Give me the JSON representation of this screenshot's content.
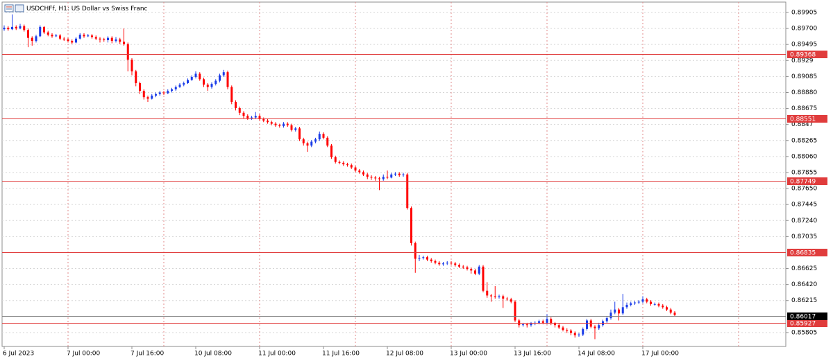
{
  "chart_data": {
    "type": "candlestick",
    "title": "USDCHFf, H1:  US Dollar vs Swiss Franc",
    "up_color": "#1a3ce8",
    "down_color": "#ff0000",
    "level_color": "#e03c3c",
    "last_color": "#7f7f7f",
    "ylim": [
      0.85627,
      0.90038
    ],
    "yticks": [
      0.89905,
      {
        "value": 0.897,
        "label": "0.89700"
      },
      0.89495,
      0.8929,
      0.89085,
      {
        "value": 0.8888,
        "label": "0.88880"
      },
      0.88675,
      0.8847,
      0.88265,
      {
        "value": 0.8806,
        "label": "0.88060"
      },
      0.87855,
      {
        "value": 0.8765,
        "label": "0.87650"
      },
      0.87445,
      {
        "value": 0.8724,
        "label": "0.87240"
      },
      0.87035,
      0.86625,
      {
        "value": 0.8642,
        "label": "0.86420"
      },
      0.86215,
      0.85805
    ],
    "xticks": [
      {
        "value": 0,
        "label": "6 Jul 2023"
      },
      {
        "value": 16,
        "label": "7 Jul 00:00"
      },
      {
        "value": 32,
        "label": "7 Jul 16:00"
      },
      {
        "value": 48,
        "label": "10 Jul 08:00"
      },
      {
        "value": 64,
        "label": "11 Jul 00:00"
      },
      {
        "value": 80,
        "label": "11 Jul 16:00"
      },
      {
        "value": 96,
        "label": "12 Jul 08:00"
      },
      {
        "value": 112,
        "label": "13 Jul 00:00"
      },
      {
        "value": 128,
        "label": "13 Jul 16:00"
      },
      {
        "value": 144,
        "label": "14 Jul 08:00"
      },
      {
        "value": 160,
        "label": "17 Jul 00:00"
      }
    ],
    "levels": [
      0.89368,
      0.88551,
      0.87749,
      0.86835,
      0.85927
    ],
    "last_price": 0.86017,
    "ohlc": [
      [
        0.8969,
        0.8974,
        0.8967,
        0.8971
      ],
      [
        0.8971,
        0.8973,
        0.8967,
        0.8969
      ],
      [
        0.8969,
        0.8988,
        0.8968,
        0.8972
      ],
      [
        0.8972,
        0.8974,
        0.8968,
        0.897
      ],
      [
        0.897,
        0.8976,
        0.8969,
        0.8973
      ],
      [
        0.8973,
        0.8975,
        0.8966,
        0.8968
      ],
      [
        0.8968,
        0.897,
        0.8946,
        0.8958
      ],
      [
        0.8958,
        0.896,
        0.8948,
        0.8954
      ],
      [
        0.8954,
        0.8962,
        0.8952,
        0.896
      ],
      [
        0.896,
        0.8974,
        0.8959,
        0.8972
      ],
      [
        0.8972,
        0.8973,
        0.8963,
        0.8965
      ],
      [
        0.8965,
        0.8967,
        0.896,
        0.8962
      ],
      [
        0.8962,
        0.8964,
        0.8958,
        0.896
      ],
      [
        0.896,
        0.8963,
        0.8959,
        0.8961
      ],
      [
        0.8961,
        0.8963,
        0.8955,
        0.8957
      ],
      [
        0.8957,
        0.8959,
        0.8954,
        0.8956
      ],
      [
        0.8956,
        0.8958,
        0.8952,
        0.8954
      ],
      [
        0.8954,
        0.8956,
        0.895,
        0.8952
      ],
      [
        0.8952,
        0.8959,
        0.8951,
        0.8957
      ],
      [
        0.8957,
        0.8964,
        0.8956,
        0.8962
      ],
      [
        0.8962,
        0.8964,
        0.8958,
        0.896
      ],
      [
        0.896,
        0.8963,
        0.8959,
        0.8961
      ],
      [
        0.8961,
        0.8963,
        0.8957,
        0.8959
      ],
      [
        0.8959,
        0.8961,
        0.8955,
        0.8957
      ],
      [
        0.8957,
        0.8959,
        0.8952,
        0.8956
      ],
      [
        0.8956,
        0.8958,
        0.8953,
        0.8955
      ],
      [
        0.8955,
        0.896,
        0.8952,
        0.8958
      ],
      [
        0.8958,
        0.896,
        0.8951,
        0.8954
      ],
      [
        0.8954,
        0.8959,
        0.8952,
        0.8956
      ],
      [
        0.8956,
        0.8958,
        0.895,
        0.8953
      ],
      [
        0.8953,
        0.897,
        0.8948,
        0.895
      ],
      [
        0.895,
        0.8952,
        0.8915,
        0.893
      ],
      [
        0.893,
        0.8932,
        0.891,
        0.8915
      ],
      [
        0.8915,
        0.8917,
        0.8896,
        0.89
      ],
      [
        0.89,
        0.8902,
        0.8886,
        0.889
      ],
      [
        0.889,
        0.8892,
        0.8879,
        0.8882
      ],
      [
        0.8882,
        0.8884,
        0.8876,
        0.888
      ],
      [
        0.888,
        0.8886,
        0.8879,
        0.8884
      ],
      [
        0.8884,
        0.8888,
        0.8882,
        0.8886
      ],
      [
        0.8886,
        0.889,
        0.8884,
        0.8888
      ],
      [
        0.8888,
        0.889,
        0.8885,
        0.8887
      ],
      [
        0.8887,
        0.8892,
        0.8886,
        0.889
      ],
      [
        0.889,
        0.8894,
        0.8888,
        0.8892
      ],
      [
        0.8892,
        0.8897,
        0.889,
        0.8895
      ],
      [
        0.8895,
        0.89,
        0.8894,
        0.8898
      ],
      [
        0.8898,
        0.8902,
        0.8896,
        0.89
      ],
      [
        0.89,
        0.8906,
        0.8899,
        0.8904
      ],
      [
        0.8904,
        0.891,
        0.8903,
        0.8908
      ],
      [
        0.8908,
        0.8915,
        0.8906,
        0.8912
      ],
      [
        0.8912,
        0.8914,
        0.8903,
        0.8905
      ],
      [
        0.8905,
        0.8907,
        0.8895,
        0.8898
      ],
      [
        0.8898,
        0.89,
        0.889,
        0.8895
      ],
      [
        0.8895,
        0.8901,
        0.8893,
        0.8899
      ],
      [
        0.8899,
        0.8905,
        0.8897,
        0.8903
      ],
      [
        0.8903,
        0.8912,
        0.8901,
        0.891
      ],
      [
        0.891,
        0.8917,
        0.8908,
        0.8914
      ],
      [
        0.8914,
        0.8916,
        0.8892,
        0.8895
      ],
      [
        0.8895,
        0.8897,
        0.8873,
        0.8876
      ],
      [
        0.8876,
        0.8878,
        0.8865,
        0.8868
      ],
      [
        0.8868,
        0.887,
        0.8859,
        0.8862
      ],
      [
        0.8862,
        0.8864,
        0.8855,
        0.8858
      ],
      [
        0.8858,
        0.886,
        0.8853,
        0.8855
      ],
      [
        0.8855,
        0.8858,
        0.8853,
        0.8856
      ],
      [
        0.8856,
        0.8863,
        0.8854,
        0.8858
      ],
      [
        0.8858,
        0.886,
        0.8852,
        0.8854
      ],
      [
        0.8854,
        0.8856,
        0.885,
        0.8852
      ],
      [
        0.8852,
        0.8854,
        0.8848,
        0.885
      ],
      [
        0.885,
        0.8852,
        0.8846,
        0.8848
      ],
      [
        0.8848,
        0.885,
        0.8844,
        0.8846
      ],
      [
        0.8846,
        0.8848,
        0.8843,
        0.8845
      ],
      [
        0.8845,
        0.885,
        0.8843,
        0.8848
      ],
      [
        0.8848,
        0.885,
        0.8844,
        0.8846
      ],
      [
        0.8846,
        0.8848,
        0.8838,
        0.884
      ],
      [
        0.884,
        0.8844,
        0.8838,
        0.8842
      ],
      [
        0.8842,
        0.8844,
        0.8826,
        0.8828
      ],
      [
        0.8828,
        0.883,
        0.882,
        0.8823
      ],
      [
        0.8823,
        0.8825,
        0.8812,
        0.882
      ],
      [
        0.882,
        0.8827,
        0.8818,
        0.8825
      ],
      [
        0.8825,
        0.883,
        0.8823,
        0.8828
      ],
      [
        0.8828,
        0.8838,
        0.8826,
        0.8835
      ],
      [
        0.8835,
        0.8837,
        0.8828,
        0.883
      ],
      [
        0.883,
        0.8832,
        0.8818,
        0.882
      ],
      [
        0.882,
        0.8822,
        0.8803,
        0.8805
      ],
      [
        0.8805,
        0.8807,
        0.8797,
        0.8799
      ],
      [
        0.8799,
        0.8801,
        0.8796,
        0.8798
      ],
      [
        0.8798,
        0.88,
        0.8794,
        0.8796
      ],
      [
        0.8796,
        0.8798,
        0.8793,
        0.8795
      ],
      [
        0.8795,
        0.8797,
        0.879,
        0.8792
      ],
      [
        0.8792,
        0.8794,
        0.8786,
        0.8788
      ],
      [
        0.8788,
        0.879,
        0.8784,
        0.8786
      ],
      [
        0.8786,
        0.8788,
        0.8781,
        0.8783
      ],
      [
        0.8783,
        0.8785,
        0.8777,
        0.878
      ],
      [
        0.878,
        0.8782,
        0.8776,
        0.8779
      ],
      [
        0.8779,
        0.8781,
        0.8775,
        0.8778
      ],
      [
        0.8778,
        0.878,
        0.8763,
        0.8777
      ],
      [
        0.8777,
        0.8783,
        0.8775,
        0.878
      ],
      [
        0.878,
        0.8788,
        0.8777,
        0.8779
      ],
      [
        0.8779,
        0.8785,
        0.8778,
        0.8783
      ],
      [
        0.8783,
        0.8786,
        0.8781,
        0.8784
      ],
      [
        0.8784,
        0.8786,
        0.878,
        0.8782
      ],
      [
        0.8782,
        0.8785,
        0.878,
        0.8783
      ],
      [
        0.8783,
        0.8785,
        0.8738,
        0.874
      ],
      [
        0.874,
        0.8742,
        0.8692,
        0.8695
      ],
      [
        0.8695,
        0.8697,
        0.8657,
        0.8675
      ],
      [
        0.8675,
        0.868,
        0.8672,
        0.8676
      ],
      [
        0.8676,
        0.8679,
        0.8674,
        0.8677
      ],
      [
        0.8677,
        0.8679,
        0.8672,
        0.8674
      ],
      [
        0.8674,
        0.8676,
        0.867,
        0.8672
      ],
      [
        0.8672,
        0.8674,
        0.8668,
        0.867
      ],
      [
        0.867,
        0.8672,
        0.8666,
        0.8668
      ],
      [
        0.8668,
        0.8671,
        0.8666,
        0.8669
      ],
      [
        0.8669,
        0.8672,
        0.8667,
        0.867
      ],
      [
        0.867,
        0.8672,
        0.8667,
        0.8669
      ],
      [
        0.8669,
        0.8671,
        0.8665,
        0.8667
      ],
      [
        0.8667,
        0.8669,
        0.8663,
        0.8665
      ],
      [
        0.8665,
        0.8667,
        0.8662,
        0.8664
      ],
      [
        0.8664,
        0.8666,
        0.866,
        0.8662
      ],
      [
        0.8662,
        0.8664,
        0.8656,
        0.866
      ],
      [
        0.866,
        0.8662,
        0.8654,
        0.8656
      ],
      [
        0.8656,
        0.8667,
        0.8654,
        0.8665
      ],
      [
        0.8665,
        0.8667,
        0.8632,
        0.8634
      ],
      [
        0.8634,
        0.8645,
        0.8625,
        0.8628
      ],
      [
        0.8628,
        0.863,
        0.862,
        0.8627
      ],
      [
        0.8627,
        0.864,
        0.8624,
        0.8626
      ],
      [
        0.8626,
        0.8629,
        0.8624,
        0.8627
      ],
      [
        0.8627,
        0.8629,
        0.8612,
        0.8624
      ],
      [
        0.8624,
        0.8626,
        0.8621,
        0.8623
      ],
      [
        0.8623,
        0.8625,
        0.8618,
        0.862
      ],
      [
        0.862,
        0.8622,
        0.8594,
        0.8596
      ],
      [
        0.8596,
        0.8598,
        0.8587,
        0.859
      ],
      [
        0.859,
        0.8593,
        0.8588,
        0.8591
      ],
      [
        0.8591,
        0.8593,
        0.8587,
        0.859
      ],
      [
        0.859,
        0.8594,
        0.8588,
        0.8592
      ],
      [
        0.8592,
        0.8595,
        0.859,
        0.8593
      ],
      [
        0.8593,
        0.8597,
        0.8591,
        0.8595
      ],
      [
        0.8595,
        0.8597,
        0.8591,
        0.8593
      ],
      [
        0.8593,
        0.8604,
        0.8591,
        0.8598
      ],
      [
        0.8598,
        0.86,
        0.859,
        0.8592
      ],
      [
        0.8592,
        0.8594,
        0.8587,
        0.859
      ],
      [
        0.859,
        0.8592,
        0.8585,
        0.8587
      ],
      [
        0.8587,
        0.8589,
        0.8582,
        0.8584
      ],
      [
        0.8584,
        0.8586,
        0.858,
        0.8583
      ],
      [
        0.8583,
        0.8585,
        0.8577,
        0.858
      ],
      [
        0.858,
        0.8582,
        0.8574,
        0.8577
      ],
      [
        0.8577,
        0.858,
        0.8575,
        0.8578
      ],
      [
        0.8578,
        0.8587,
        0.8576,
        0.8585
      ],
      [
        0.8585,
        0.8598,
        0.8583,
        0.8596
      ],
      [
        0.8596,
        0.8598,
        0.8586,
        0.8588
      ],
      [
        0.8588,
        0.859,
        0.8572,
        0.8586
      ],
      [
        0.8586,
        0.8593,
        0.8584,
        0.859
      ],
      [
        0.859,
        0.8597,
        0.8588,
        0.8595
      ],
      [
        0.8595,
        0.8601,
        0.8593,
        0.8599
      ],
      [
        0.8599,
        0.861,
        0.8597,
        0.8606
      ],
      [
        0.8606,
        0.862,
        0.8604,
        0.861
      ],
      [
        0.861,
        0.8612,
        0.8596,
        0.8605
      ],
      [
        0.8605,
        0.863,
        0.8603,
        0.8613
      ],
      [
        0.8613,
        0.8619,
        0.8611,
        0.8616
      ],
      [
        0.8616,
        0.862,
        0.8614,
        0.8618
      ],
      [
        0.8618,
        0.8621,
        0.8616,
        0.8619
      ],
      [
        0.8619,
        0.8622,
        0.8617,
        0.862
      ],
      [
        0.862,
        0.8627,
        0.8618,
        0.8623
      ],
      [
        0.8623,
        0.8625,
        0.8618,
        0.862
      ],
      [
        0.862,
        0.8622,
        0.8615,
        0.8617
      ],
      [
        0.8617,
        0.8619,
        0.8615,
        0.8617
      ],
      [
        0.8617,
        0.8619,
        0.8613,
        0.8615
      ],
      [
        0.8615,
        0.8617,
        0.8611,
        0.8613
      ],
      [
        0.8613,
        0.8615,
        0.8608,
        0.861
      ],
      [
        0.861,
        0.8612,
        0.8604,
        0.8606
      ],
      [
        0.8606,
        0.8608,
        0.8601,
        0.8603
      ]
    ]
  }
}
